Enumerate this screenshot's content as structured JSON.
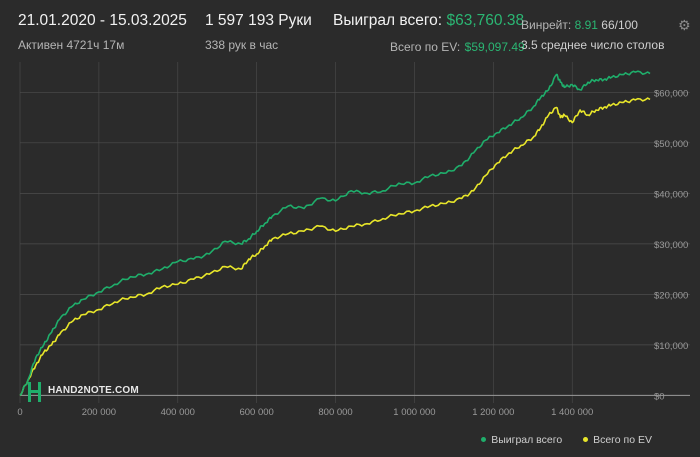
{
  "header": {
    "date_range": "21.01.2020 - 15.03.2025",
    "active_time": "Активен 4721ч 17м",
    "hands_count": "1 597 193 Руки",
    "hands_per_hour": "338 рук в час",
    "won_total_label": "Выиграл всего:",
    "won_total_value": "$63,760.38",
    "ev_total_label": "Всего по EV:",
    "ev_total_value": "$59,097.49",
    "winrate_label": "Винрейт:",
    "winrate_value": "8.91",
    "winrate_suffix": "66/100",
    "tables_text": "3.5 среднее число столов",
    "settings_icon": "gear-icon"
  },
  "legend": {
    "won_label": "Выиграл всего",
    "ev_label": "Всего по EV",
    "logo_text": "HAND2NOTE.COM"
  },
  "colors": {
    "background": "#2b2b2b",
    "won": "#1fae6b",
    "ev": "#e8e62a",
    "grid": "#4d4d4d",
    "axis_text": "#9a9a9a"
  },
  "chart_data": {
    "type": "line",
    "xlabel": "",
    "ylabel": "",
    "xlim": [
      0,
      1597193
    ],
    "ylim": [
      -1500,
      66000
    ],
    "x_ticks": [
      0,
      200000,
      400000,
      600000,
      800000,
      1000000,
      1200000,
      1400000
    ],
    "x_tick_labels": [
      "0",
      "200 000",
      "400 000",
      "600 000",
      "800 000",
      "1 000 000",
      "1 200 000",
      "1 400 000"
    ],
    "y_ticks": [
      0,
      10000,
      20000,
      30000,
      40000,
      50000,
      60000
    ],
    "y_tick_labels": [
      "$0",
      "$10,000",
      "$20,000",
      "$30,000",
      "$40,000",
      "$50,000",
      "$60,000"
    ],
    "grid": true,
    "legend_position": "bottom-right",
    "series": [
      {
        "name": "Выиграл всего",
        "x": [
          0,
          20000,
          40000,
          60000,
          80000,
          100000,
          130000,
          160000,
          200000,
          240000,
          280000,
          320000,
          360000,
          400000,
          440000,
          480000,
          520000,
          560000,
          580000,
          600000,
          620000,
          640000,
          680000,
          720000,
          760000,
          800000,
          840000,
          880000,
          920000,
          960000,
          1000000,
          1040000,
          1080000,
          1120000,
          1150000,
          1180000,
          1210000,
          1240000,
          1270000,
          1300000,
          1320000,
          1340000,
          1360000,
          1370000,
          1380000,
          1400000,
          1420000,
          1440000,
          1460000,
          1480000,
          1500000,
          1530000,
          1560000,
          1597193
        ],
        "values": [
          0,
          3000,
          7500,
          10000,
          12500,
          15000,
          17500,
          19000,
          20500,
          22000,
          23500,
          24000,
          25000,
          26500,
          27000,
          28000,
          30500,
          30000,
          31000,
          32500,
          34000,
          35500,
          37500,
          37000,
          39000,
          38500,
          40500,
          40000,
          40500,
          42000,
          42000,
          43500,
          44000,
          45500,
          48000,
          50500,
          52000,
          53500,
          55000,
          57000,
          59000,
          60500,
          63500,
          62000,
          61000,
          61500,
          60500,
          62000,
          62500,
          62500,
          63000,
          63500,
          64000,
          63700
        ]
      },
      {
        "name": "Всего по EV",
        "x": [
          0,
          20000,
          40000,
          60000,
          80000,
          100000,
          130000,
          160000,
          200000,
          240000,
          280000,
          320000,
          360000,
          400000,
          440000,
          480000,
          520000,
          560000,
          580000,
          600000,
          620000,
          640000,
          680000,
          720000,
          760000,
          800000,
          840000,
          880000,
          920000,
          960000,
          1000000,
          1040000,
          1080000,
          1120000,
          1150000,
          1180000,
          1210000,
          1240000,
          1270000,
          1300000,
          1320000,
          1340000,
          1360000,
          1370000,
          1380000,
          1400000,
          1420000,
          1440000,
          1460000,
          1480000,
          1500000,
          1530000,
          1560000,
          1597193
        ],
        "values": [
          0,
          3000,
          6000,
          8500,
          10000,
          12000,
          14500,
          16000,
          17000,
          18500,
          19500,
          20000,
          21500,
          22000,
          23000,
          24000,
          25500,
          25000,
          27000,
          28000,
          29500,
          31000,
          32000,
          32500,
          33500,
          32500,
          33500,
          34000,
          35000,
          36000,
          36500,
          37500,
          38000,
          39000,
          40500,
          43500,
          46000,
          48000,
          49500,
          51000,
          53000,
          55500,
          57000,
          55000,
          55500,
          54000,
          56500,
          55500,
          56500,
          57000,
          57500,
          58000,
          58500,
          58600
        ]
      }
    ]
  }
}
